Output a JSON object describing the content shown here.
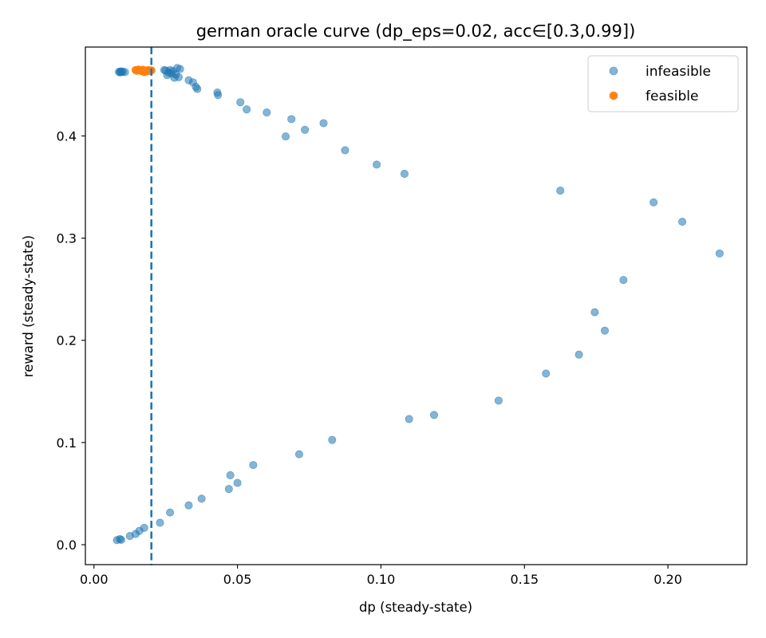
{
  "chart_data": {
    "type": "scatter",
    "title": "german oracle curve (dp_eps=0.02, acc∈[0.3,0.99])",
    "xlabel": "dp (steady-state)",
    "ylabel": "reward (steady-state)",
    "xlim": [
      -0.003,
      0.2275
    ],
    "ylim": [
      -0.0195,
      0.487
    ],
    "xticks": [
      0.0,
      0.05,
      0.1,
      0.15,
      0.2
    ],
    "xtick_labels": [
      "0.00",
      "0.05",
      "0.10",
      "0.15",
      "0.20"
    ],
    "yticks": [
      0.0,
      0.1,
      0.2,
      0.3,
      0.4
    ],
    "ytick_labels": [
      "0.0",
      "0.1",
      "0.2",
      "0.3",
      "0.4"
    ],
    "grid": false,
    "legend_position": "top-right",
    "threshold_line": {
      "x": 0.02,
      "style": "dashed",
      "color": "#1f77b4"
    },
    "series": [
      {
        "name": "infeasible",
        "color": "#1f77b4",
        "alpha": 0.55,
        "points": [
          [
            0.0087,
            0.4628
          ],
          [
            0.009,
            0.4622
          ],
          [
            0.0093,
            0.4632
          ],
          [
            0.0096,
            0.4625
          ],
          [
            0.01,
            0.463
          ],
          [
            0.0108,
            0.4625
          ],
          [
            0.0245,
            0.4645
          ],
          [
            0.025,
            0.464
          ],
          [
            0.0255,
            0.4595
          ],
          [
            0.026,
            0.462
          ],
          [
            0.0265,
            0.4645
          ],
          [
            0.027,
            0.461
          ],
          [
            0.0275,
            0.4635
          ],
          [
            0.028,
            0.457
          ],
          [
            0.0285,
            0.46
          ],
          [
            0.029,
            0.4665
          ],
          [
            0.0295,
            0.4575
          ],
          [
            0.03,
            0.4655
          ],
          [
            0.033,
            0.4545
          ],
          [
            0.0345,
            0.4525
          ],
          [
            0.0355,
            0.448
          ],
          [
            0.036,
            0.446
          ],
          [
            0.043,
            0.4425
          ],
          [
            0.0432,
            0.44
          ],
          [
            0.051,
            0.433
          ],
          [
            0.0532,
            0.426
          ],
          [
            0.0602,
            0.423
          ],
          [
            0.0668,
            0.3995
          ],
          [
            0.0688,
            0.4165
          ],
          [
            0.0735,
            0.406
          ],
          [
            0.08,
            0.4125
          ],
          [
            0.0875,
            0.386
          ],
          [
            0.0985,
            0.372
          ],
          [
            0.1082,
            0.363
          ],
          [
            0.1625,
            0.3465
          ],
          [
            0.195,
            0.335
          ],
          [
            0.205,
            0.316
          ],
          [
            0.218,
            0.285
          ],
          [
            0.1845,
            0.259
          ],
          [
            0.1745,
            0.2275
          ],
          [
            0.178,
            0.2095
          ],
          [
            0.169,
            0.186
          ],
          [
            0.1575,
            0.1675
          ],
          [
            0.141,
            0.141
          ],
          [
            0.1185,
            0.127
          ],
          [
            0.1098,
            0.123
          ],
          [
            0.083,
            0.1025
          ],
          [
            0.0715,
            0.0885
          ],
          [
            0.0555,
            0.078
          ],
          [
            0.0475,
            0.068
          ],
          [
            0.05,
            0.0605
          ],
          [
            0.047,
            0.0545
          ],
          [
            0.0375,
            0.045
          ],
          [
            0.033,
            0.0385
          ],
          [
            0.0265,
            0.0315
          ],
          [
            0.023,
            0.0215
          ],
          [
            0.0175,
            0.0165
          ],
          [
            0.0158,
            0.0135
          ],
          [
            0.0145,
            0.0105
          ],
          [
            0.0125,
            0.0085
          ],
          [
            0.009,
            0.0055
          ],
          [
            0.008,
            0.0045
          ],
          [
            0.0095,
            0.0048
          ]
        ]
      },
      {
        "name": "feasible",
        "color": "#ff7f0e",
        "alpha": 0.95,
        "points": [
          [
            0.0145,
            0.4645
          ],
          [
            0.015,
            0.4638
          ],
          [
            0.0155,
            0.465
          ],
          [
            0.016,
            0.4642
          ],
          [
            0.0165,
            0.4635
          ],
          [
            0.017,
            0.4648
          ],
          [
            0.0175,
            0.4625
          ],
          [
            0.018,
            0.464
          ],
          [
            0.0185,
            0.4632
          ],
          [
            0.019,
            0.4645
          ],
          [
            0.0195,
            0.4638
          ],
          [
            0.02,
            0.4642
          ]
        ]
      }
    ]
  }
}
